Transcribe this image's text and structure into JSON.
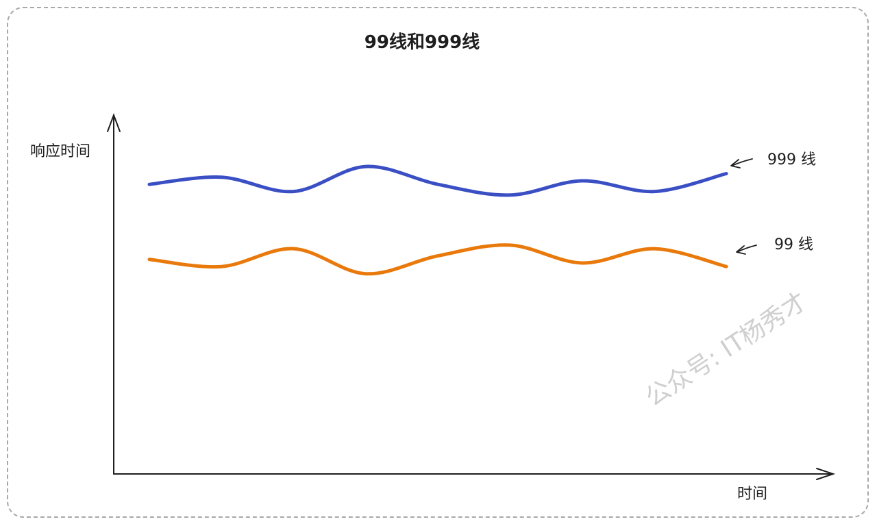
{
  "chart_data": {
    "type": "line",
    "title": "99线和999线",
    "xlabel": "时间",
    "ylabel": "响应时间",
    "x": [
      0,
      1,
      2,
      3,
      4,
      5,
      6,
      7,
      8
    ],
    "ylim": [
      0,
      10
    ],
    "grid": false,
    "legend": "inline-right",
    "series": [
      {
        "name": "999 线",
        "color": "#3b4fc4",
        "values": [
          8.1,
          8.3,
          7.9,
          8.6,
          8.1,
          7.8,
          8.2,
          7.9,
          8.4
        ]
      },
      {
        "name": "99 线",
        "color": "#e8790a",
        "values": [
          6.0,
          5.8,
          6.3,
          5.6,
          6.1,
          6.4,
          5.9,
          6.3,
          5.8
        ]
      }
    ]
  },
  "watermark": "公众号: IT杨秀才"
}
